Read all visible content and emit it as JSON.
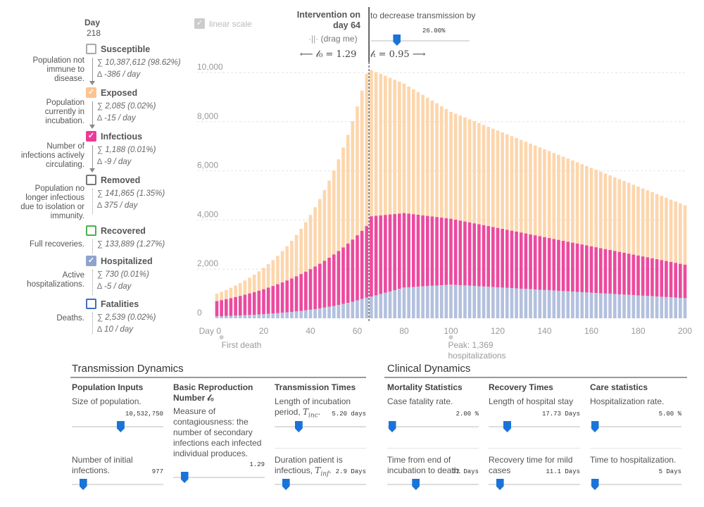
{
  "legend": {
    "day_label": "Day",
    "day_value": "218",
    "categories": [
      {
        "label": "Susceptible",
        "desc": "Population not immune to disease.",
        "total": "10,387,612 (98.62%)",
        "delta": "-386 / day",
        "color": "#aaaaaa",
        "checked": false
      },
      {
        "label": "Exposed",
        "desc": "Population currently in incubation.",
        "total": "2,085 (0.02%)",
        "delta": "-15 / day",
        "color": "#fdc490",
        "checked": true
      },
      {
        "label": "Infectious",
        "desc": "Number of infections actively circulating.",
        "total": "1,188 (0.01%)",
        "delta": "-9 / day",
        "color": "#ec3a98",
        "checked": true
      },
      {
        "label": "Removed",
        "desc": "Population no longer infectious due to isolation or immunity.",
        "total": "141,865 (1.35%)",
        "delta": "375 / day",
        "color": "#777777",
        "checked": false
      },
      {
        "label": "Recovered",
        "desc": "Full recoveries.",
        "total": "133,889 (1.27%)",
        "delta": "",
        "color": "#4caf50",
        "checked": false
      },
      {
        "label": "Hospitalized",
        "desc": "Active hospitalizations.",
        "total": "730 (0.01%)",
        "delta": "-5 / day",
        "color": "#8fa3d0",
        "checked": true
      },
      {
        "label": "Fatalities",
        "desc": "Deaths.",
        "total": "2,539 (0.02%)",
        "delta": "10 / day",
        "color": "#3e6fc0",
        "checked": false
      }
    ]
  },
  "linear_scale": {
    "label": "linear scale",
    "checked": true
  },
  "intervention": {
    "title": "Intervention on day 64",
    "drag_label": "(drag me)",
    "r0_text": "⟵ 𝓁₀ = 1.29",
    "decrease_label": "to decrease transmission by",
    "decrease_value": "26.00%",
    "decrease_fraction": 0.26,
    "rt_text": "𝓁ₜ = 0.95 ⟶",
    "day": 64
  },
  "chart_data": {
    "type": "bar",
    "stacked": true,
    "title": "",
    "xlabel": "Day",
    "x_ticks": [
      "Day 0",
      "20",
      "40",
      "60",
      "80",
      "100",
      "120",
      "140",
      "160",
      "180",
      "200"
    ],
    "y_ticks": [
      "0",
      "2,000",
      "4,000",
      "6,000",
      "8,000",
      "10,000"
    ],
    "xlim": [
      0,
      200
    ],
    "ylim": [
      0,
      11000
    ],
    "bar_step_days": 2,
    "series": [
      {
        "name": "Hospitalized",
        "color": "#b3c0de",
        "peak_day": 100,
        "peak": 1369
      },
      {
        "name": "Infectious",
        "color": "#ec4a9e",
        "peak_day": 80,
        "peak_total_top": 4280
      },
      {
        "name": "Exposed",
        "color": "#fdd6ad",
        "peak_day": 66,
        "peak_total_top": 10100
      }
    ],
    "key_values": {
      "day0": {
        "hospitalized": 80,
        "infectious": 700,
        "exposed": 1000
      },
      "day64": {
        "hospitalized": 840,
        "infectious": 3750,
        "exposed": 9950
      },
      "day66": {
        "hospitalized": 880,
        "infectious": 4150,
        "exposed": 10100
      },
      "day80": {
        "hospitalized": 1250,
        "infectious": 4280,
        "exposed": 9550
      },
      "day100": {
        "hospitalized": 1369,
        "infectious": 4050,
        "exposed": 8400
      },
      "day200": {
        "hospitalized": 820,
        "infectious": 2180,
        "exposed": 4600
      }
    },
    "annotations": [
      {
        "day": 2,
        "text": "First death"
      },
      {
        "day": 100,
        "text": "Peak: 1,369 hospitalizations"
      }
    ]
  },
  "transmission": {
    "title": "Transmission Dynamics",
    "population": {
      "title": "Population Inputs",
      "size_label": "Size of population.",
      "size_value": "10,532,750",
      "size_fraction": 0.53,
      "initial_label": "Number of initial infections.",
      "initial_value": "977",
      "initial_fraction": 0.12
    },
    "reproduction": {
      "title": "Basic Reproduction Number 𝓁₀",
      "text": "Measure of contagiousness: the number of secondary infections each infected individual produces.",
      "value": "1.29",
      "fraction": 0.12
    },
    "times": {
      "title": "Transmission Times",
      "incubation_label": "Length of incubation period, ",
      "incubation_sym": "T",
      "incubation_sub": "inc",
      "incubation_value": "5.20 days",
      "incubation_fraction": 0.26,
      "infectious_label": "Duration patient is infectious, ",
      "infectious_sym": "T",
      "infectious_sub": "inf",
      "infectious_value": "2.9 Days",
      "infectious_fraction": 0.12
    }
  },
  "clinical": {
    "title": "Clinical Dynamics",
    "mortality": {
      "title": "Mortality Statistics",
      "cfr_label": "Case fatality rate.",
      "cfr_value": "2.00 %",
      "cfr_fraction": 0.05,
      "death_label": "Time from end of incubation to death.",
      "death_value": "32 Days",
      "death_fraction": 0.31
    },
    "recovery": {
      "title": "Recovery Times",
      "hospital_label": "Length of hospital stay",
      "hospital_value": "17.73 Days",
      "hospital_fraction": 0.2,
      "mild_label": "Recovery time for mild cases",
      "mild_value": "11.1 Days",
      "mild_fraction": 0.12
    },
    "care": {
      "title": "Care statistics",
      "hosp_label": "Hospitalization rate.",
      "hosp_value": "5.00 %",
      "hosp_fraction": 0.05,
      "time_label": "Time to hospitalization.",
      "time_value": "5 Days",
      "time_fraction": 0.05
    }
  }
}
